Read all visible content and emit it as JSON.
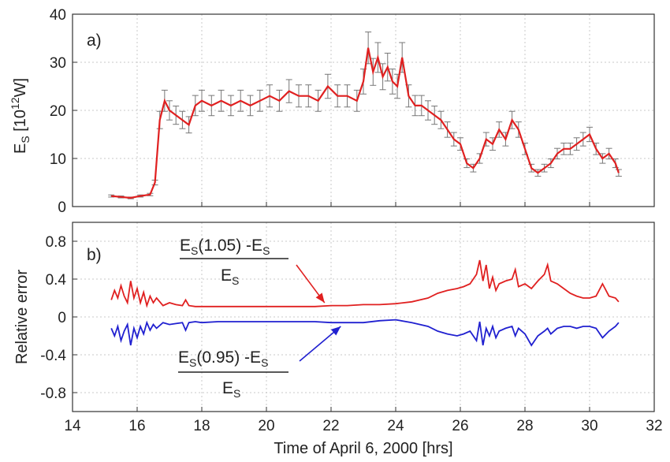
{
  "figure": {
    "xlabel": "Time of April 6, 2000 [hrs]",
    "colors": {
      "upper": "#e02020",
      "lower": "#2020d0",
      "errorbar": "#777777",
      "grid": "#c8c8c8"
    }
  },
  "chart_data": [
    {
      "type": "line",
      "panel_label": "a)",
      "ylabel": "E_S [10^12 W]",
      "ylabel_parts": {
        "base": "E",
        "sub": "S",
        "mid": " [10",
        "sup": "12",
        "end": "W]"
      },
      "xlim": [
        14,
        32
      ],
      "ylim": [
        0,
        40
      ],
      "xticks": [
        "14",
        "16",
        "18",
        "20",
        "22",
        "24",
        "26",
        "28",
        "30",
        "32"
      ],
      "yticks": [
        "0",
        "10",
        "20",
        "30",
        "40"
      ],
      "grid": true,
      "error_bar_fraction": 0.1,
      "series": [
        {
          "x": [
            15.2,
            15.5,
            15.8,
            16.1,
            16.4,
            16.55,
            16.7,
            16.85,
            17.0,
            17.2,
            17.4,
            17.6,
            17.8,
            18.0,
            18.3,
            18.6,
            18.9,
            19.2,
            19.5,
            19.8,
            20.1,
            20.4,
            20.7,
            21.0,
            21.3,
            21.6,
            21.9,
            22.2,
            22.5,
            22.8,
            23.0,
            23.15,
            23.3,
            23.45,
            23.6,
            23.75,
            23.9,
            24.05,
            24.2,
            24.4,
            24.6,
            24.8,
            25.0,
            25.2,
            25.4,
            25.6,
            25.8,
            26.0,
            26.2,
            26.4,
            26.6,
            26.8,
            27.0,
            27.2,
            27.4,
            27.6,
            27.8,
            28.0,
            28.2,
            28.4,
            28.6,
            28.8,
            29.0,
            29.2,
            29.4,
            29.6,
            29.8,
            30.0,
            30.2,
            30.4,
            30.6,
            30.8,
            30.9
          ],
          "y": [
            2.2,
            2.0,
            1.8,
            2.2,
            2.5,
            5,
            18,
            22,
            20,
            19,
            18,
            17,
            21,
            22,
            21,
            22,
            21,
            22,
            21,
            22,
            23,
            22,
            24,
            23,
            23,
            22,
            25,
            23,
            23,
            22,
            26,
            33,
            28,
            31,
            27,
            29,
            26,
            25,
            31,
            23,
            21,
            21,
            20,
            19,
            18,
            16,
            14,
            13,
            9,
            8,
            10,
            14,
            13,
            16,
            14,
            18,
            16,
            12,
            8,
            7,
            8,
            9,
            11,
            12,
            12,
            13,
            14,
            15,
            12,
            10,
            11,
            9,
            7
          ]
        }
      ]
    },
    {
      "type": "line",
      "panel_label": "b)",
      "ylabel": "Relative error",
      "xlim": [
        14,
        32
      ],
      "ylim": [
        -1,
        1
      ],
      "xticks": [
        "14",
        "16",
        "18",
        "20",
        "22",
        "24",
        "26",
        "28",
        "30",
        "32"
      ],
      "yticks": [
        "0.8",
        "0.4",
        "0",
        "-0.4",
        "-0.8"
      ],
      "ytick_values": [
        0.8,
        0.4,
        0,
        -0.4,
        -0.8
      ],
      "grid": true,
      "annotations": [
        {
          "numerator": {
            "base": "E",
            "sub": "S",
            "arg": "(1.05) -E",
            "sub2": "S"
          },
          "denominator": {
            "base": "E",
            "sub": "S"
          },
          "arrow_to": [
            21.8,
            0.15
          ]
        },
        {
          "numerator": {
            "base": "E",
            "sub": "S",
            "arg": "(0.95) -E",
            "sub2": "S"
          },
          "denominator": {
            "base": "E",
            "sub": "S"
          },
          "arrow_to": [
            22.3,
            -0.1
          ]
        }
      ],
      "series": [
        {
          "x": [
            15.2,
            15.3,
            15.4,
            15.5,
            15.6,
            15.7,
            15.8,
            15.9,
            16.0,
            16.1,
            16.2,
            16.3,
            16.4,
            16.5,
            16.6,
            16.8,
            17.0,
            17.2,
            17.4,
            17.5,
            17.6,
            17.8,
            18.0,
            18.5,
            19.0,
            19.5,
            20.0,
            20.5,
            21.0,
            21.5,
            22.0,
            22.5,
            23.0,
            23.5,
            24.0,
            24.5,
            25.0,
            25.3,
            25.6,
            25.9,
            26.1,
            26.3,
            26.5,
            26.6,
            26.7,
            26.8,
            26.9,
            27.0,
            27.1,
            27.2,
            27.4,
            27.6,
            27.7,
            27.8,
            28.0,
            28.2,
            28.4,
            28.6,
            28.7,
            28.8,
            29.0,
            29.2,
            29.4,
            29.6,
            29.8,
            30.0,
            30.2,
            30.4,
            30.6,
            30.8,
            30.9
          ],
          "y": [
            0.18,
            0.28,
            0.2,
            0.33,
            0.22,
            0.15,
            0.38,
            0.2,
            0.3,
            0.15,
            0.26,
            0.12,
            0.22,
            0.15,
            0.2,
            0.12,
            0.15,
            0.13,
            0.12,
            0.18,
            0.12,
            0.11,
            0.11,
            0.11,
            0.11,
            0.11,
            0.11,
            0.11,
            0.11,
            0.11,
            0.12,
            0.12,
            0.13,
            0.13,
            0.14,
            0.16,
            0.2,
            0.25,
            0.28,
            0.3,
            0.32,
            0.35,
            0.45,
            0.6,
            0.38,
            0.55,
            0.3,
            0.42,
            0.28,
            0.35,
            0.38,
            0.4,
            0.5,
            0.32,
            0.35,
            0.3,
            0.38,
            0.45,
            0.55,
            0.38,
            0.35,
            0.3,
            0.25,
            0.22,
            0.2,
            0.2,
            0.22,
            0.35,
            0.22,
            0.2,
            0.16
          ]
        },
        {
          "x": [
            15.2,
            15.3,
            15.4,
            15.5,
            15.6,
            15.7,
            15.8,
            15.9,
            16.0,
            16.1,
            16.2,
            16.3,
            16.4,
            16.5,
            16.6,
            16.8,
            17.0,
            17.2,
            17.4,
            17.5,
            17.6,
            17.8,
            18.0,
            18.5,
            19.0,
            19.5,
            20.0,
            20.5,
            21.0,
            21.5,
            22.0,
            22.5,
            23.0,
            23.5,
            24.0,
            24.5,
            25.0,
            25.3,
            25.6,
            25.9,
            26.1,
            26.3,
            26.5,
            26.6,
            26.7,
            26.8,
            26.9,
            27.0,
            27.1,
            27.2,
            27.4,
            27.6,
            27.7,
            27.8,
            28.0,
            28.2,
            28.4,
            28.6,
            28.7,
            28.8,
            29.0,
            29.2,
            29.4,
            29.6,
            29.8,
            30.0,
            30.2,
            30.4,
            30.6,
            30.8,
            30.9
          ],
          "y": [
            -0.12,
            -0.2,
            -0.1,
            -0.25,
            -0.15,
            -0.08,
            -0.3,
            -0.12,
            -0.22,
            -0.1,
            -0.18,
            -0.06,
            -0.14,
            -0.08,
            -0.12,
            -0.06,
            -0.08,
            -0.07,
            -0.06,
            -0.14,
            -0.06,
            -0.05,
            -0.06,
            -0.05,
            -0.05,
            -0.05,
            -0.05,
            -0.05,
            -0.05,
            -0.05,
            -0.06,
            -0.06,
            -0.06,
            -0.04,
            -0.03,
            -0.06,
            -0.1,
            -0.15,
            -0.18,
            -0.2,
            -0.18,
            -0.15,
            -0.25,
            -0.05,
            -0.3,
            -0.12,
            -0.2,
            -0.1,
            -0.22,
            -0.15,
            -0.12,
            -0.1,
            -0.2,
            -0.12,
            -0.18,
            -0.3,
            -0.2,
            -0.15,
            -0.12,
            -0.18,
            -0.12,
            -0.1,
            -0.1,
            -0.12,
            -0.1,
            -0.1,
            -0.12,
            -0.22,
            -0.15,
            -0.1,
            -0.06
          ]
        }
      ]
    }
  ]
}
